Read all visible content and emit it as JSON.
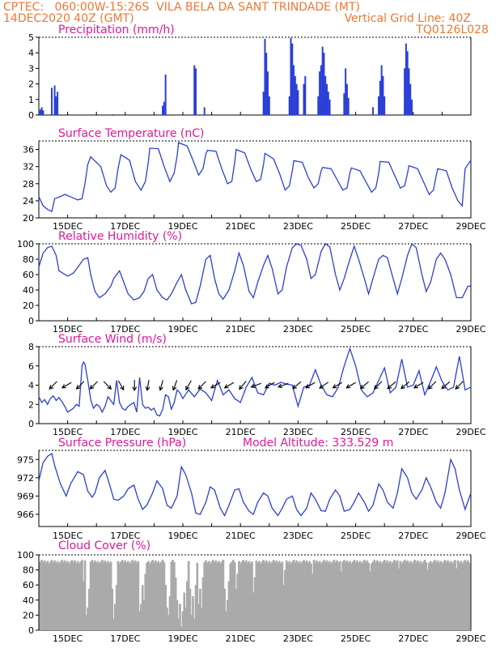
{
  "header": {
    "line1": "CPTEC:   060:00W-15:26S  VILA BELA DA SANT TRINDADE (MT)",
    "date": "14DEC2020 40Z (GMT)",
    "grid_note": "Vertical Grid Line: 40Z",
    "code": "TQ0126L028"
  },
  "x_tick_labels": [
    "15DEC",
    "17DEC",
    "19DEC",
    "21DEC",
    "23DEC",
    "25DEC",
    "27DEC",
    "29DEC"
  ],
  "colors": {
    "header": "#ee7733",
    "titles": "#e0189a",
    "series": "#2b3fd6",
    "cloud": "#aaaaaa"
  },
  "chart_data": [
    {
      "type": "bar",
      "title": "Precipitation (mm/h)",
      "x_range_days": [
        14.0,
        29.0
      ],
      "ylim": [
        0,
        5
      ],
      "y_ticks": [
        "0",
        "1",
        "2",
        "3",
        "4",
        "5"
      ],
      "bars": [
        {
          "x": 14.05,
          "v": 0.35
        },
        {
          "x": 14.1,
          "v": 0.5
        },
        {
          "x": 14.15,
          "v": 0.3
        },
        {
          "x": 14.45,
          "v": 1.75
        },
        {
          "x": 14.55,
          "v": 1.9
        },
        {
          "x": 14.6,
          "v": 1.2
        },
        {
          "x": 14.65,
          "v": 1.5
        },
        {
          "x": 16.55,
          "v": 0.05
        },
        {
          "x": 18.3,
          "v": 0.6
        },
        {
          "x": 18.35,
          "v": 0.85
        },
        {
          "x": 18.4,
          "v": 2.6
        },
        {
          "x": 19.4,
          "v": 3.2
        },
        {
          "x": 19.45,
          "v": 3.0
        },
        {
          "x": 19.75,
          "v": 0.5
        },
        {
          "x": 21.8,
          "v": 1.5
        },
        {
          "x": 21.85,
          "v": 4.9
        },
        {
          "x": 21.9,
          "v": 4.0
        },
        {
          "x": 21.95,
          "v": 2.8
        },
        {
          "x": 22.0,
          "v": 1.2
        },
        {
          "x": 22.7,
          "v": 1.2
        },
        {
          "x": 22.75,
          "v": 4.95
        },
        {
          "x": 22.8,
          "v": 4.6
        },
        {
          "x": 22.85,
          "v": 3.2
        },
        {
          "x": 22.9,
          "v": 2.5
        },
        {
          "x": 22.95,
          "v": 2.0
        },
        {
          "x": 23.0,
          "v": 1.6
        },
        {
          "x": 23.2,
          "v": 2.0
        },
        {
          "x": 23.25,
          "v": 2.5
        },
        {
          "x": 23.7,
          "v": 1.2
        },
        {
          "x": 23.75,
          "v": 2.8
        },
        {
          "x": 23.8,
          "v": 3.2
        },
        {
          "x": 23.85,
          "v": 4.4
        },
        {
          "x": 23.9,
          "v": 4.0
        },
        {
          "x": 23.95,
          "v": 2.5
        },
        {
          "x": 24.0,
          "v": 2.0
        },
        {
          "x": 24.05,
          "v": 1.5
        },
        {
          "x": 24.1,
          "v": 1.0
        },
        {
          "x": 24.6,
          "v": 1.4
        },
        {
          "x": 24.65,
          "v": 3.0
        },
        {
          "x": 24.7,
          "v": 2.0
        },
        {
          "x": 24.75,
          "v": 1.1
        },
        {
          "x": 25.6,
          "v": 0.5
        },
        {
          "x": 25.8,
          "v": 1.2
        },
        {
          "x": 25.85,
          "v": 2.2
        },
        {
          "x": 25.9,
          "v": 3.2
        },
        {
          "x": 25.95,
          "v": 2.5
        },
        {
          "x": 26.0,
          "v": 1.2
        },
        {
          "x": 26.7,
          "v": 3.0
        },
        {
          "x": 26.75,
          "v": 4.6
        },
        {
          "x": 26.8,
          "v": 4.1
        },
        {
          "x": 26.85,
          "v": 3.0
        },
        {
          "x": 26.9,
          "v": 2.0
        },
        {
          "x": 26.95,
          "v": 1.0
        }
      ]
    },
    {
      "type": "line",
      "title": "Surface Temperature (nC)",
      "x_range_days": [
        14.0,
        29.0
      ],
      "ylim": [
        20,
        38
      ],
      "y_ticks": [
        "20",
        "24",
        "28",
        "32",
        "36"
      ],
      "x": [
        14.0,
        14.15,
        14.3,
        14.45,
        14.55,
        14.75,
        14.9,
        15.15,
        15.35,
        15.5,
        15.6,
        15.7,
        15.8,
        16.15,
        16.35,
        16.5,
        16.65,
        16.75,
        16.85,
        17.15,
        17.35,
        17.55,
        17.7,
        17.8,
        17.85,
        18.15,
        18.35,
        18.55,
        18.7,
        18.8,
        18.85,
        19.15,
        19.35,
        19.55,
        19.7,
        19.8,
        19.85,
        20.15,
        20.35,
        20.55,
        20.7,
        20.8,
        20.85,
        21.15,
        21.35,
        21.55,
        21.7,
        21.8,
        21.85,
        22.15,
        22.35,
        22.55,
        22.7,
        22.8,
        22.85,
        23.15,
        23.35,
        23.55,
        23.7,
        23.8,
        23.85,
        24.15,
        24.35,
        24.55,
        24.7,
        24.8,
        24.85,
        25.15,
        25.35,
        25.55,
        25.7,
        25.8,
        25.85,
        26.15,
        26.35,
        26.55,
        26.7,
        26.8,
        26.85,
        27.15,
        27.35,
        27.55,
        27.7,
        27.8,
        27.85,
        28.15,
        28.35,
        28.55,
        28.7,
        28.8,
        29.0
      ],
      "y": [
        25.0,
        22.8,
        22.0,
        21.5,
        24.5,
        25.0,
        25.5,
        24.8,
        24.2,
        24.5,
        28.0,
        32.5,
        34.3,
        32.0,
        27.5,
        26.0,
        27.0,
        31.5,
        34.8,
        33.5,
        28.5,
        26.5,
        28.5,
        33.0,
        36.3,
        36.2,
        32.0,
        28.5,
        30.5,
        34.5,
        37.6,
        36.8,
        33.5,
        30.0,
        31.5,
        35.0,
        35.8,
        35.6,
        31.5,
        28.0,
        28.5,
        33.0,
        36.0,
        35.2,
        31.5,
        28.5,
        29.0,
        32.5,
        35.1,
        33.8,
        30.5,
        26.5,
        27.5,
        31.0,
        33.4,
        33.0,
        29.5,
        27.0,
        28.0,
        31.0,
        31.8,
        31.5,
        29.0,
        26.5,
        27.0,
        30.5,
        31.7,
        31.0,
        28.5,
        26.0,
        27.0,
        30.5,
        33.2,
        33.0,
        30.0,
        27.0,
        27.5,
        30.5,
        32.2,
        31.5,
        28.5,
        25.5,
        26.5,
        30.0,
        31.5,
        31.0,
        27.0,
        24.0,
        22.8,
        31.5,
        33.5
      ]
    },
    {
      "type": "line",
      "title": "Relative Humidity (%)",
      "x_range_days": [
        14.0,
        29.0
      ],
      "ylim": [
        0,
        100
      ],
      "y_ticks": [
        "0",
        "20",
        "40",
        "60",
        "80",
        "100"
      ],
      "x": [
        14.0,
        14.15,
        14.3,
        14.45,
        14.6,
        14.7,
        15.0,
        15.2,
        15.4,
        15.55,
        15.7,
        15.8,
        15.95,
        16.1,
        16.3,
        16.5,
        16.6,
        16.8,
        16.95,
        17.1,
        17.3,
        17.5,
        17.65,
        17.8,
        17.95,
        18.1,
        18.3,
        18.45,
        18.6,
        18.8,
        18.95,
        19.1,
        19.3,
        19.45,
        19.6,
        19.8,
        19.95,
        20.1,
        20.25,
        20.4,
        20.6,
        20.8,
        20.95,
        21.1,
        21.3,
        21.45,
        21.6,
        21.8,
        21.95,
        22.1,
        22.3,
        22.45,
        22.6,
        22.8,
        22.95,
        23.1,
        23.3,
        23.45,
        23.6,
        23.8,
        23.95,
        24.1,
        24.3,
        24.45,
        24.6,
        24.8,
        24.95,
        25.1,
        25.3,
        25.45,
        25.6,
        25.8,
        25.95,
        26.1,
        26.3,
        26.45,
        26.6,
        26.8,
        26.95,
        27.1,
        27.3,
        27.45,
        27.6,
        27.8,
        27.95,
        28.1,
        28.3,
        28.5,
        28.7,
        28.9,
        29.0
      ],
      "y": [
        70,
        88,
        95,
        97,
        85,
        65,
        58,
        62,
        72,
        80,
        82,
        60,
        38,
        30,
        35,
        45,
        55,
        65,
        50,
        35,
        27,
        30,
        38,
        55,
        60,
        40,
        30,
        27,
        35,
        50,
        60,
        40,
        22,
        24,
        45,
        80,
        85,
        55,
        35,
        28,
        40,
        65,
        88,
        72,
        38,
        30,
        50,
        72,
        85,
        68,
        35,
        40,
        70,
        95,
        100,
        98,
        80,
        55,
        60,
        90,
        100,
        96,
        60,
        40,
        55,
        80,
        97,
        80,
        55,
        35,
        55,
        80,
        85,
        82,
        55,
        35,
        55,
        85,
        100,
        95,
        60,
        38,
        50,
        80,
        88,
        80,
        60,
        30,
        30,
        45,
        45
      ]
    },
    {
      "type": "line",
      "title": "Surface Wind (m/s)",
      "x_range_days": [
        14.0,
        29.0
      ],
      "ylim": [
        0,
        8
      ],
      "y_ticks": [
        "0",
        "2",
        "4",
        "6",
        "8"
      ],
      "x": [
        14.0,
        14.1,
        14.2,
        14.3,
        14.4,
        14.5,
        14.6,
        14.7,
        14.8,
        14.9,
        15.0,
        15.1,
        15.2,
        15.3,
        15.4,
        15.5,
        15.55,
        15.6,
        15.7,
        15.8,
        15.9,
        16.0,
        16.1,
        16.2,
        16.3,
        16.4,
        16.5,
        16.6,
        16.7,
        16.8,
        16.9,
        17.0,
        17.1,
        17.2,
        17.3,
        17.4,
        17.5,
        17.6,
        17.7,
        17.8,
        17.9,
        18.0,
        18.1,
        18.2,
        18.3,
        18.4,
        18.5,
        18.6,
        18.7,
        18.8,
        18.9,
        19.0,
        19.2,
        19.4,
        19.6,
        19.8,
        20.0,
        20.2,
        20.4,
        20.6,
        20.8,
        21.0,
        21.2,
        21.4,
        21.6,
        21.8,
        22.0,
        22.2,
        22.4,
        22.6,
        22.8,
        23.0,
        23.2,
        23.4,
        23.6,
        23.8,
        24.0,
        24.2,
        24.4,
        24.6,
        24.8,
        25.0,
        25.2,
        25.4,
        25.6,
        25.8,
        26.0,
        26.2,
        26.4,
        26.6,
        26.8,
        27.0,
        27.2,
        27.4,
        27.6,
        27.8,
        28.0,
        28.2,
        28.4,
        28.6,
        28.8,
        29.0
      ],
      "y": [
        2.8,
        2.2,
        2.5,
        2.0,
        2.6,
        2.9,
        2.4,
        2.7,
        2.3,
        1.8,
        1.2,
        1.4,
        1.6,
        2.0,
        1.8,
        6.0,
        6.4,
        6.2,
        4.5,
        2.5,
        1.6,
        2.0,
        1.8,
        1.2,
        1.8,
        2.8,
        2.4,
        2.0,
        4.5,
        2.2,
        1.6,
        1.4,
        1.8,
        2.0,
        2.2,
        1.2,
        4.8,
        2.0,
        1.6,
        1.7,
        1.4,
        1.6,
        0.9,
        0.8,
        1.5,
        3.0,
        2.8,
        1.5,
        2.2,
        3.5,
        3.2,
        2.6,
        3.5,
        2.8,
        3.6,
        3.2,
        2.4,
        4.5,
        3.0,
        3.5,
        2.6,
        2.2,
        3.8,
        4.8,
        3.2,
        3.0,
        4.2,
        4.0,
        4.3,
        4.1,
        4.0,
        1.8,
        3.8,
        4.0,
        5.6,
        4.0,
        3.0,
        2.8,
        3.8,
        6.0,
        7.8,
        6.0,
        3.5,
        2.8,
        3.2,
        4.5,
        5.8,
        3.2,
        3.8,
        6.7,
        3.8,
        4.0,
        5.5,
        3.0,
        4.4,
        5.9,
        4.4,
        3.5,
        3.8,
        7.0,
        3.5,
        3.8
      ],
      "wind_arrows_deg": [
        135,
        150,
        135,
        135,
        45,
        60,
        90,
        100,
        105,
        110,
        120,
        135,
        150,
        150,
        130,
        160,
        150,
        160,
        140,
        150,
        145,
        150,
        150,
        140,
        135,
        140,
        140,
        150,
        135,
        140,
        135
      ]
    },
    {
      "type": "line",
      "title": "Surface Pressure (hPa)",
      "annotation": "Model Altitude: 333.529 m",
      "x_range_days": [
        14.0,
        29.0
      ],
      "ylim": [
        964,
        976.5
      ],
      "y_ticks": [
        "966",
        "969",
        "972",
        "975"
      ],
      "x": [
        14.0,
        14.15,
        14.3,
        14.45,
        14.55,
        14.75,
        14.95,
        15.1,
        15.35,
        15.55,
        15.7,
        15.85,
        15.95,
        16.1,
        16.3,
        16.45,
        16.6,
        16.75,
        16.95,
        17.1,
        17.3,
        17.45,
        17.6,
        17.75,
        17.95,
        18.1,
        18.3,
        18.45,
        18.6,
        18.8,
        18.95,
        19.1,
        19.3,
        19.45,
        19.6,
        19.8,
        19.95,
        20.1,
        20.3,
        20.45,
        20.6,
        20.8,
        20.95,
        21.1,
        21.3,
        21.45,
        21.6,
        21.8,
        21.95,
        22.1,
        22.3,
        22.45,
        22.6,
        22.8,
        22.95,
        23.1,
        23.3,
        23.45,
        23.6,
        23.8,
        23.95,
        24.1,
        24.3,
        24.45,
        24.6,
        24.8,
        24.95,
        25.1,
        25.3,
        25.45,
        25.6,
        25.8,
        25.95,
        26.1,
        26.3,
        26.45,
        26.6,
        26.8,
        26.95,
        27.1,
        27.3,
        27.45,
        27.6,
        27.8,
        27.95,
        28.1,
        28.3,
        28.45,
        28.6,
        28.8,
        29.0
      ],
      "y": [
        971.5,
        974.5,
        975.5,
        976.0,
        974.0,
        971.0,
        969.0,
        971.0,
        973.0,
        972.5,
        969.8,
        968.8,
        969.5,
        972.0,
        973.2,
        971.0,
        968.5,
        968.3,
        969.0,
        970.2,
        970.8,
        968.5,
        966.8,
        967.5,
        969.5,
        971.5,
        970.2,
        967.5,
        967.0,
        969.0,
        973.8,
        972.5,
        969.5,
        966.2,
        966.0,
        968.0,
        970.5,
        970.0,
        967.0,
        965.8,
        967.5,
        970.0,
        970.2,
        968.0,
        966.5,
        966.0,
        968.0,
        969.5,
        969.0,
        967.0,
        965.8,
        967.0,
        968.5,
        969.0,
        966.8,
        965.8,
        967.0,
        969.5,
        968.5,
        966.6,
        966.5,
        968.5,
        970.0,
        969.0,
        966.5,
        966.8,
        968.0,
        969.5,
        968.0,
        966.5,
        967.5,
        971.0,
        970.0,
        968.0,
        967.0,
        969.5,
        973.5,
        972.0,
        969.5,
        968.5,
        970.0,
        972.0,
        970.5,
        968.0,
        967.0,
        969.5,
        975.0,
        973.5,
        970.0,
        966.8,
        969.5
      ]
    },
    {
      "type": "bar",
      "title": "Cloud Cover (%)",
      "x_range_days": [
        14.0,
        29.0
      ],
      "ylim": [
        0,
        100
      ],
      "y_ticks": [
        "0",
        "20",
        "40",
        "60",
        "80",
        "100"
      ],
      "baseline_percent": 91,
      "dips": [
        {
          "x": 15.55,
          "v": 65
        },
        {
          "x": 15.65,
          "v": 20
        },
        {
          "x": 15.7,
          "v": 30
        },
        {
          "x": 15.75,
          "v": 55
        },
        {
          "x": 16.55,
          "v": 55
        },
        {
          "x": 16.6,
          "v": 15
        },
        {
          "x": 16.65,
          "v": 35
        },
        {
          "x": 16.7,
          "v": 60
        },
        {
          "x": 17.5,
          "v": 25
        },
        {
          "x": 17.55,
          "v": 35
        },
        {
          "x": 17.6,
          "v": 60
        },
        {
          "x": 17.65,
          "v": 40
        },
        {
          "x": 17.7,
          "v": 75
        },
        {
          "x": 18.4,
          "v": 60
        },
        {
          "x": 18.45,
          "v": 30
        },
        {
          "x": 18.5,
          "v": 20
        },
        {
          "x": 18.55,
          "v": 45
        },
        {
          "x": 18.75,
          "v": 70
        },
        {
          "x": 18.8,
          "v": 40
        },
        {
          "x": 18.85,
          "v": 15
        },
        {
          "x": 18.9,
          "v": 35
        },
        {
          "x": 18.95,
          "v": 5
        },
        {
          "x": 19.0,
          "v": 25
        },
        {
          "x": 19.05,
          "v": 50
        },
        {
          "x": 19.1,
          "v": 30
        },
        {
          "x": 19.15,
          "v": 65
        },
        {
          "x": 19.25,
          "v": 55
        },
        {
          "x": 19.3,
          "v": 20
        },
        {
          "x": 19.35,
          "v": 45
        },
        {
          "x": 19.4,
          "v": 15
        },
        {
          "x": 19.45,
          "v": 60
        },
        {
          "x": 19.55,
          "v": 35
        },
        {
          "x": 19.6,
          "v": 55
        },
        {
          "x": 19.65,
          "v": 30
        },
        {
          "x": 19.7,
          "v": 70
        },
        {
          "x": 20.45,
          "v": 55
        },
        {
          "x": 20.5,
          "v": 25
        },
        {
          "x": 20.55,
          "v": 40
        },
        {
          "x": 20.6,
          "v": 65
        },
        {
          "x": 20.85,
          "v": 55
        },
        {
          "x": 20.9,
          "v": 75
        },
        {
          "x": 21.45,
          "v": 50
        },
        {
          "x": 21.5,
          "v": 70
        },
        {
          "x": 22.5,
          "v": 60
        },
        {
          "x": 22.55,
          "v": 80
        },
        {
          "x": 23.5,
          "v": 75
        },
        {
          "x": 24.5,
          "v": 78
        },
        {
          "x": 25.5,
          "v": 78
        },
        {
          "x": 26.5,
          "v": 82
        },
        {
          "x": 27.5,
          "v": 80
        },
        {
          "x": 28.5,
          "v": 82
        }
      ]
    }
  ]
}
